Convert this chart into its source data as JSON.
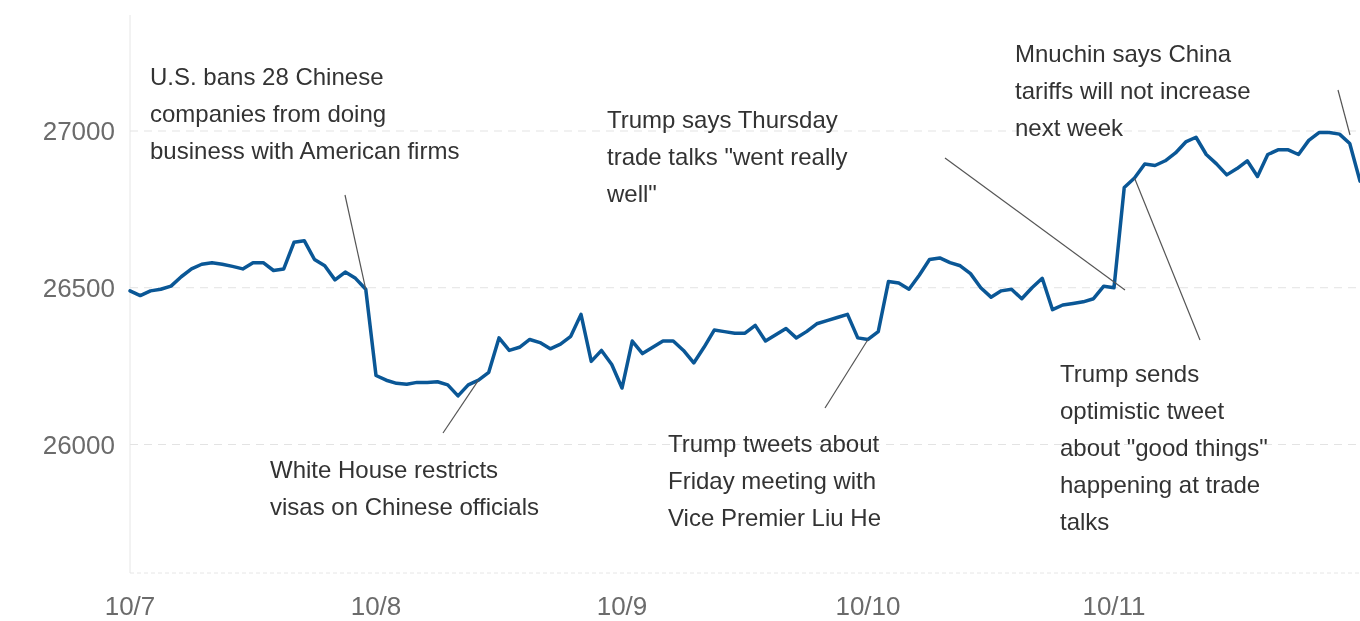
{
  "chart_data": {
    "type": "line",
    "x": [
      "--10-07T00:00",
      "--10-07T01:00",
      "--10-07T02:00",
      "--10-07T03:00",
      "--10-07T04:00",
      "--10-07T05:00",
      "--10-07T06:00",
      "--10-07T07:00",
      "--10-07T08:00",
      "--10-07T09:00",
      "--10-07T10:00",
      "--10-07T11:00",
      "--10-07T12:00",
      "--10-07T13:00",
      "--10-07T14:00",
      "--10-07T15:00",
      "--10-07T16:00",
      "--10-07T17:00",
      "--10-07T18:00",
      "--10-07T19:00",
      "--10-07T20:00",
      "--10-07T21:00",
      "--10-07T22:00",
      "--10-07T23:00",
      "--10-08T00:00",
      "--10-08T01:00",
      "--10-08T02:00",
      "--10-08T03:00",
      "--10-08T04:00",
      "--10-08T05:00",
      "--10-08T06:00",
      "--10-08T07:00",
      "--10-08T08:00",
      "--10-08T09:00",
      "--10-08T10:00",
      "--10-08T11:00",
      "--10-08T12:00",
      "--10-08T13:00",
      "--10-08T14:00",
      "--10-08T15:00",
      "--10-08T16:00",
      "--10-08T17:00",
      "--10-08T18:00",
      "--10-08T19:00",
      "--10-08T20:00",
      "--10-08T21:00",
      "--10-08T22:00",
      "--10-08T23:00",
      "--10-09T00:00",
      "--10-09T01:00",
      "--10-09T02:00",
      "--10-09T03:00",
      "--10-09T04:00",
      "--10-09T05:00",
      "--10-09T06:00",
      "--10-09T07:00",
      "--10-09T08:00",
      "--10-09T09:00",
      "--10-09T10:00",
      "--10-09T11:00",
      "--10-09T12:00",
      "--10-09T13:00",
      "--10-09T14:00",
      "--10-09T15:00",
      "--10-09T16:00",
      "--10-09T17:00",
      "--10-09T18:00",
      "--10-09T19:00",
      "--10-09T20:00",
      "--10-09T21:00",
      "--10-09T22:00",
      "--10-09T23:00",
      "--10-10T00:00",
      "--10-10T01:00",
      "--10-10T02:00",
      "--10-10T03:00",
      "--10-10T04:00",
      "--10-10T05:00",
      "--10-10T06:00",
      "--10-10T07:00",
      "--10-10T08:00",
      "--10-10T09:00",
      "--10-10T10:00",
      "--10-10T11:00",
      "--10-10T12:00",
      "--10-10T13:00",
      "--10-10T14:00",
      "--10-10T15:00",
      "--10-10T16:00",
      "--10-10T17:00",
      "--10-10T18:00",
      "--10-10T19:00",
      "--10-10T20:00",
      "--10-10T21:00",
      "--10-10T22:00",
      "--10-10T23:00",
      "--10-11T00:00",
      "--10-11T01:00",
      "--10-11T02:00",
      "--10-11T03:00",
      "--10-11T04:00",
      "--10-11T05:00",
      "--10-11T06:00",
      "--10-11T07:00",
      "--10-11T08:00",
      "--10-11T09:00",
      "--10-11T10:00",
      "--10-11T11:00",
      "--10-11T12:00",
      "--10-11T13:00",
      "--10-11T14:00",
      "--10-11T15:00",
      "--10-11T16:00",
      "--10-11T17:00",
      "--10-11T18:00",
      "--10-11T19:00",
      "--10-11T20:00",
      "--10-11T21:00",
      "--10-11T22:00",
      "--10-11T23:00",
      "--10-12T00:00"
    ],
    "series": [
      {
        "color": "#0a5796",
        "values": [
          26490,
          26475,
          26490,
          26495,
          26505,
          26535,
          26560,
          26575,
          26580,
          26575,
          26568,
          26560,
          26580,
          26580,
          26555,
          26560,
          26645,
          26650,
          26590,
          26570,
          26525,
          26550,
          26530,
          26495,
          26220,
          26205,
          26195,
          26192,
          26198,
          26198,
          26200,
          26190,
          26155,
          26190,
          26205,
          26230,
          26340,
          26300,
          26310,
          26335,
          26325,
          26305,
          26320,
          26345,
          26415,
          26265,
          26300,
          26255,
          26180,
          26330,
          26290,
          26310,
          26330,
          26330,
          26300,
          26260,
          26310,
          26365,
          26360,
          26355,
          26355,
          26380,
          26330,
          26350,
          26370,
          26340,
          26360,
          26385,
          26395,
          26405,
          26415,
          26340,
          26335,
          26360,
          26520,
          26515,
          26495,
          26540,
          26590,
          26595,
          26580,
          26570,
          26545,
          26500,
          26470,
          26490,
          26495,
          26465,
          26500,
          26530,
          26430,
          26445,
          26450,
          26455,
          26465,
          26505,
          26500,
          26820,
          26850,
          26895,
          26890,
          26905,
          26930,
          26965,
          26980,
          26925,
          26895,
          26860,
          26880,
          26905,
          26855,
          26925,
          26940,
          26940,
          26925,
          26970,
          26995,
          26995,
          26990,
          26960,
          26840
        ]
      }
    ],
    "xlim": [
      "--10-07T00:00",
      "--10-12T00:00"
    ],
    "xticks": [
      {
        "value": "--10-07",
        "label": "10/7"
      },
      {
        "value": "--10-08",
        "label": "10/8"
      },
      {
        "value": "--10-09",
        "label": "10/9"
      },
      {
        "value": "--10-10",
        "label": "10/10"
      },
      {
        "value": "--10-11",
        "label": "10/11"
      }
    ],
    "ylim": [
      25590,
      27370
    ],
    "yticks": [
      26000,
      26500,
      27000
    ],
    "grid": "y",
    "marker": "none",
    "line_style": "solid",
    "annotations": [
      {
        "text": "U.S. bans 28 Chinese\ncompanies from doing\nbusiness with American firms",
        "x": "--10-07T23:00",
        "y": 26495
      },
      {
        "text": "White House restricts\nvisas on Chinese officials",
        "x": "--10-08T10:00",
        "y": 26205
      },
      {
        "text": "Trump tweets about\nFriday meeting with\nVice Premier Liu He",
        "x": "--10-10T00:00",
        "y": 26335
      },
      "Trump says Thursday\ntrade talks \"went really\nwell\"",
      {
        "text": "Trump sends\noptimistic tweet\nabout \"good things\"\nhappening at trade\ntalks",
        "x": "--10-11T02:00",
        "y": 26850
      },
      "Mnuchin says China\ntariffs will not increase\nnext week"
    ]
  }
}
